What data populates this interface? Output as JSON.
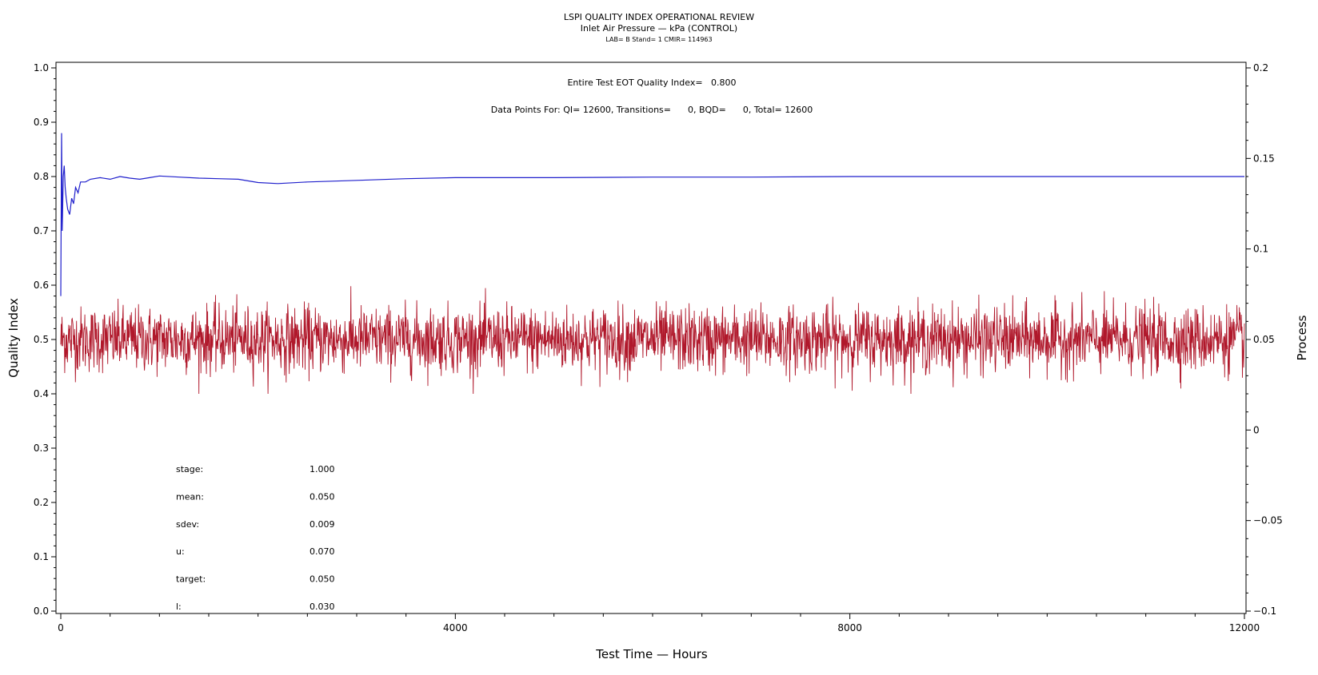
{
  "header": {
    "title": "LSPI QUALITY INDEX OPERATIONAL REVIEW",
    "subtitle": "Inlet Air Pressure — kPa (CONTROL)",
    "meta": "LAB= B Stand= 1 CMIR= 114963"
  },
  "annotations": {
    "eot_line": "Entire Test EOT Quality Index=   0.800",
    "points_line": "Data Points For: QI= 12600, Transitions=      0, BQD=      0, Total= 12600"
  },
  "stats": [
    {
      "label": "stage:",
      "value": "1.000"
    },
    {
      "label": "mean:",
      "value": "0.050"
    },
    {
      "label": "sdev:",
      "value": "0.009"
    },
    {
      "label": "u:",
      "value": "0.070"
    },
    {
      "label": "target:",
      "value": "0.050"
    },
    {
      "label": "l:",
      "value": "0.030"
    }
  ],
  "colors": {
    "quality_index": "#1f1fcc",
    "process": "#b0182b",
    "axis": "#000000"
  },
  "chart_data": {
    "type": "line",
    "title": "LSPI QUALITY INDEX OPERATIONAL REVIEW",
    "xlabel": "Test Time — Hours",
    "ylabel": "Quality Index",
    "y2label": "Process",
    "xlim": [
      0,
      12000
    ],
    "ylim": [
      0,
      1
    ],
    "y2lim": [
      -0.1,
      0.2
    ],
    "xticks": [
      0,
      4000,
      8000,
      12000
    ],
    "xtick_labels": [
      "0",
      "4000",
      "8000",
      "12000"
    ],
    "yticks": [
      0.0,
      0.1,
      0.2,
      0.3,
      0.4,
      0.5,
      0.6,
      0.7,
      0.8,
      0.9,
      1.0
    ],
    "ytick_labels": [
      "0.0",
      "0.1",
      "0.2",
      "0.3",
      "0.4",
      "0.5",
      "0.6",
      "0.7",
      "0.8",
      "0.9",
      "1.0"
    ],
    "y2ticks": [
      -0.1,
      -0.05,
      0,
      0.05,
      0.1,
      0.15,
      0.2
    ],
    "y2tick_labels": [
      "−0.1",
      "−0.05",
      "0",
      "0.05",
      "0.1",
      "0.15",
      "0.2"
    ],
    "grid": false,
    "series": [
      {
        "axis": "left",
        "x": [
          0,
          8,
          15,
          25,
          35,
          45,
          55,
          70,
          90,
          110,
          130,
          150,
          175,
          200,
          250,
          300,
          400,
          500,
          600,
          700,
          800,
          900,
          1000,
          1200,
          1400,
          1600,
          1800,
          2000,
          2200,
          2500,
          3000,
          3500,
          4000,
          5000,
          6000,
          7000,
          8000,
          9000,
          10000,
          11000,
          12000
        ],
        "values": [
          0.58,
          0.88,
          0.7,
          0.8,
          0.82,
          0.78,
          0.76,
          0.74,
          0.73,
          0.76,
          0.75,
          0.78,
          0.77,
          0.79,
          0.79,
          0.795,
          0.798,
          0.795,
          0.8,
          0.797,
          0.795,
          0.798,
          0.801,
          0.799,
          0.797,
          0.796,
          0.795,
          0.789,
          0.787,
          0.79,
          0.793,
          0.796,
          0.798,
          0.798,
          0.799,
          0.799,
          0.8,
          0.8,
          0.8,
          0.8,
          0.8
        ]
      },
      {
        "axis": "right",
        "points": 12600,
        "mean": 0.05,
        "sdev": 0.009,
        "min": 0.02,
        "max": 0.085
      }
    ]
  }
}
